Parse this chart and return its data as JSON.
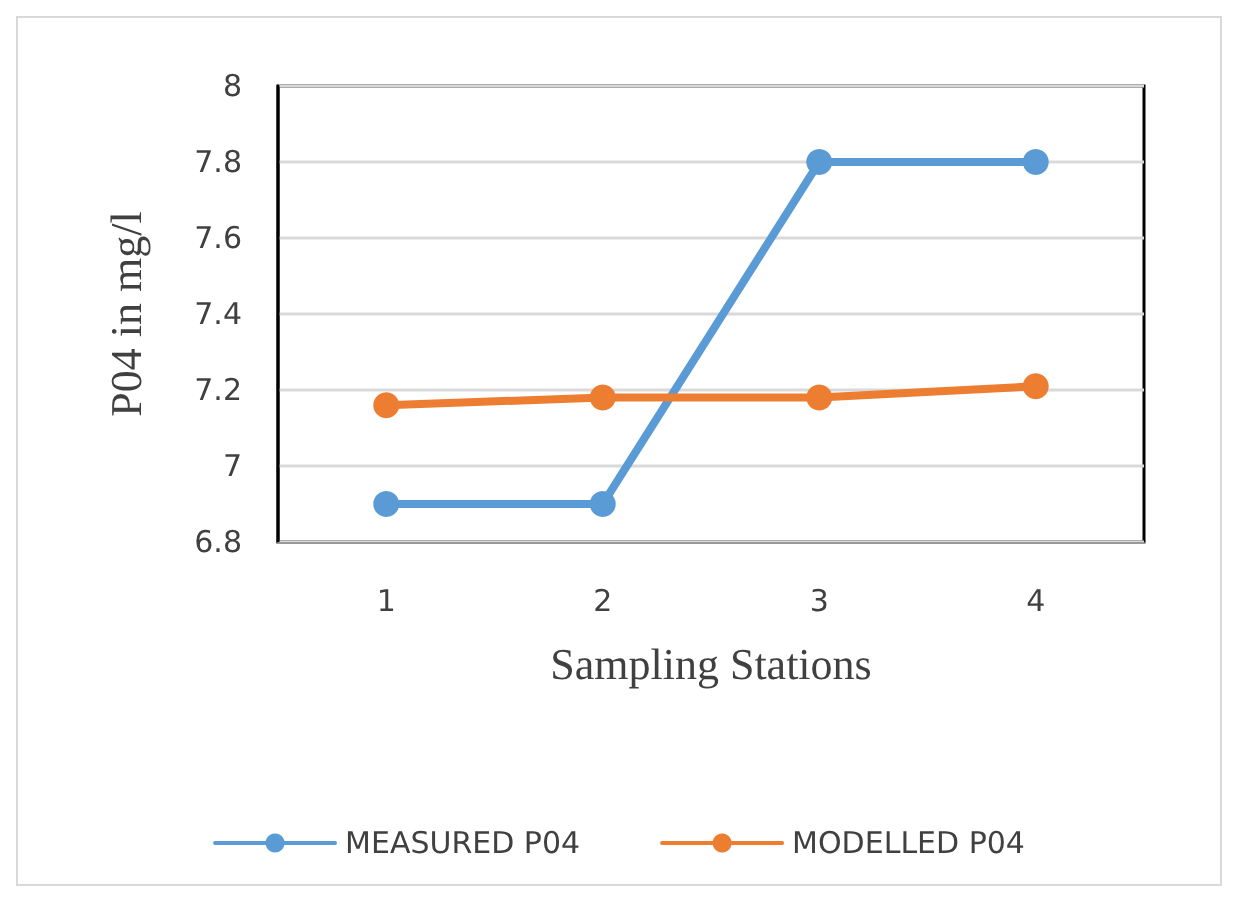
{
  "chart_data": {
    "type": "line",
    "xlabel": "Sampling Stations",
    "ylabel": "P04 in mg/l",
    "categories": [
      "1",
      "2",
      "3",
      "4"
    ],
    "series": [
      {
        "name": "MEASURED P04",
        "color": "#5b9bd5",
        "values": [
          6.9,
          6.9,
          7.8,
          7.8
        ]
      },
      {
        "name": "MODELLED P04",
        "color": "#ed7d31",
        "values": [
          7.16,
          7.18,
          7.18,
          7.21
        ]
      }
    ],
    "ylim": [
      6.8,
      8
    ],
    "yticks": [
      6.8,
      7,
      7.2,
      7.4,
      7.6,
      7.8,
      8
    ],
    "grid": "y",
    "legend": "bottom",
    "marker": "circle",
    "line_style": "solid"
  }
}
